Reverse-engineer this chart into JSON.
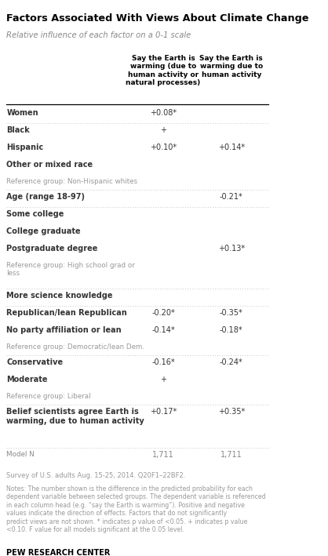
{
  "title": "Factors Associated With Views About Climate Change",
  "subtitle": "Relative influence of each factor on a 0-1 scale",
  "col1_header": "Say the Earth is\nwarming (due to\nhuman activity or\nnatural processes)",
  "col2_header": "Say the Earth is\nwarming due to\nhuman activity",
  "rows": [
    {
      "label": "Women",
      "col1": "+0.08*",
      "col2": "",
      "label_bold": true,
      "is_ref": false,
      "sep_above": false
    },
    {
      "label": "Black",
      "col1": "+",
      "col2": "",
      "label_bold": true,
      "is_ref": false,
      "sep_above": true
    },
    {
      "label": "Hispanic",
      "col1": "+0.10*",
      "col2": "+0.14*",
      "label_bold": true,
      "is_ref": false,
      "sep_above": false
    },
    {
      "label": "Other or mixed race",
      "col1": "",
      "col2": "",
      "label_bold": true,
      "is_ref": false,
      "sep_above": false
    },
    {
      "label": "Reference group: Non-Hispanic whites",
      "col1": "",
      "col2": "",
      "label_bold": false,
      "is_ref": true,
      "sep_above": false
    },
    {
      "label": "Age (range 18-97)",
      "col1": "",
      "col2": "-0.21*",
      "label_bold": true,
      "is_ref": false,
      "sep_above": true
    },
    {
      "label": "Some college",
      "col1": "",
      "col2": "",
      "label_bold": true,
      "is_ref": false,
      "sep_above": true
    },
    {
      "label": "College graduate",
      "col1": "",
      "col2": "",
      "label_bold": true,
      "is_ref": false,
      "sep_above": false
    },
    {
      "label": "Postgraduate degree",
      "col1": "",
      "col2": "+0.13*",
      "label_bold": true,
      "is_ref": false,
      "sep_above": false
    },
    {
      "label": "Reference group: High school grad or\nless",
      "col1": "",
      "col2": "",
      "label_bold": false,
      "is_ref": true,
      "sep_above": false
    },
    {
      "label": "More science knowledge",
      "col1": "",
      "col2": "",
      "label_bold": true,
      "is_ref": false,
      "sep_above": true
    },
    {
      "label": "Republican/lean Republican",
      "col1": "-0.20*",
      "col2": "-0.35*",
      "label_bold": true,
      "is_ref": false,
      "sep_above": true
    },
    {
      "label": "No party affiliation or lean",
      "col1": "-0.14*",
      "col2": "-0.18*",
      "label_bold": true,
      "is_ref": false,
      "sep_above": false
    },
    {
      "label": "Reference group: Democratic/lean Dem.",
      "col1": "",
      "col2": "",
      "label_bold": false,
      "is_ref": true,
      "sep_above": false
    },
    {
      "label": "Conservative",
      "col1": "-0.16*",
      "col2": "-0.24*",
      "label_bold": true,
      "is_ref": false,
      "sep_above": true
    },
    {
      "label": "Moderate",
      "col1": "+",
      "col2": "",
      "label_bold": true,
      "is_ref": false,
      "sep_above": false
    },
    {
      "label": "Reference group: Liberal",
      "col1": "",
      "col2": "",
      "label_bold": false,
      "is_ref": true,
      "sep_above": false
    },
    {
      "label": "Belief scientists agree Earth is\nwarming, due to human activity",
      "col1": "+0.17*",
      "col2": "+0.35*",
      "label_bold": true,
      "is_ref": false,
      "sep_above": true
    },
    {
      "label": "Model N",
      "col1": "1,711",
      "col2": "1,711",
      "label_bold": false,
      "is_ref": true,
      "sep_above": true
    }
  ],
  "source_line": "Survey of U.S. adults Aug. 15-25, 2014. Q20F1–22BF2.",
  "notes": "Notes: The number shown is the difference in the predicted probability for each dependent variable between selected groups. The dependent variable is referenced in each column head (e.g. “say the Earth is warming”). Positive and negative values indicate the direction of effects. Factors that do not significantly predict views are not shown. * indicates p value of <0.05. + indicates p value <0.10. F value for all models significant at the 0.05 level.",
  "footer": "PEW RESEARCH CENTER",
  "title_color": "#000000",
  "subtitle_color": "#888888",
  "header_color": "#000000",
  "ref_color": "#999999",
  "data_color": "#333333",
  "sep_color": "#c8c8c8",
  "model_n_color": "#888888",
  "bg_color": "#ffffff"
}
